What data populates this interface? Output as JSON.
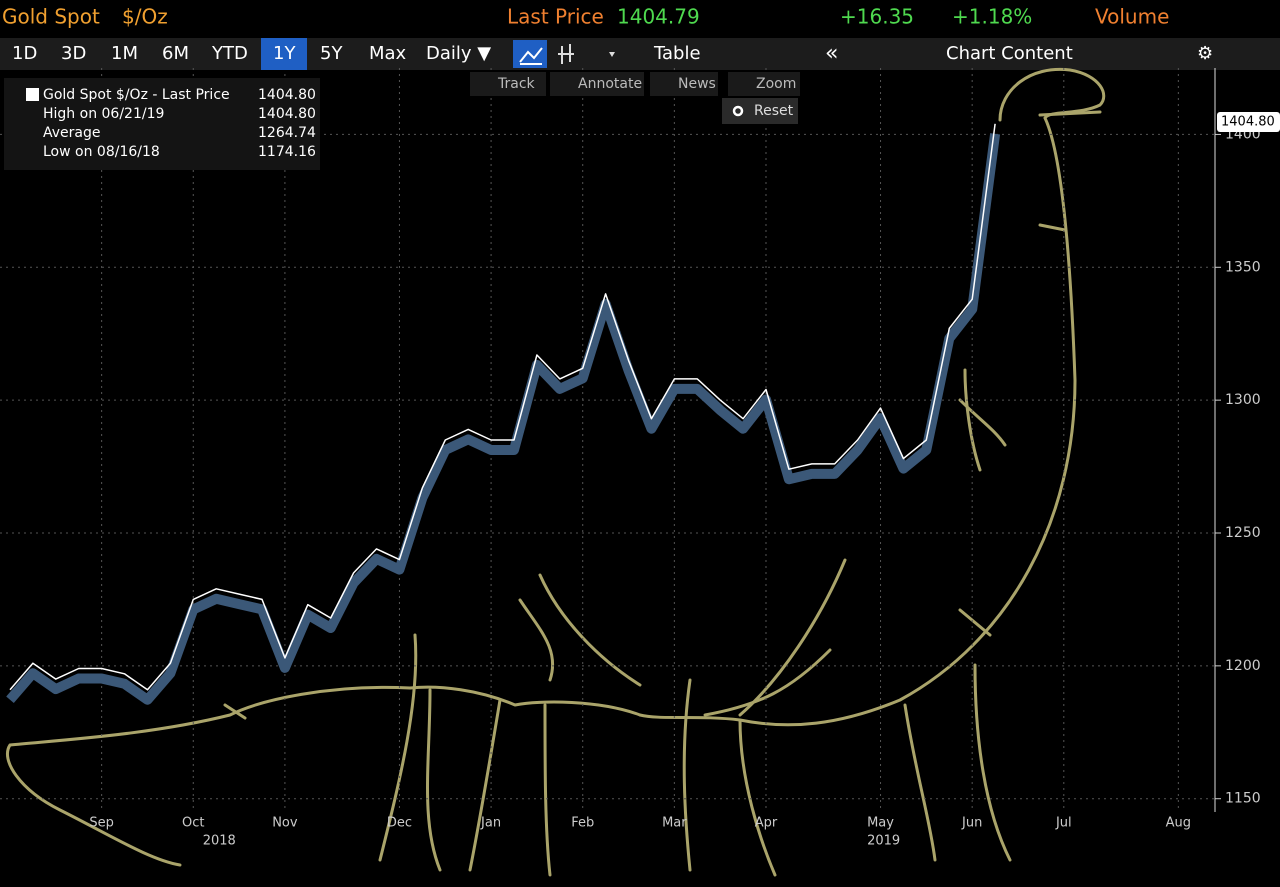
{
  "header": {
    "title": "Gold Spot",
    "unit": "$/Oz",
    "last_price_label": "Last Price",
    "last_price": "1404.79",
    "change": "+16.35",
    "change_pct": "+1.18%",
    "volume_label": "Volume"
  },
  "toolbar": {
    "ranges": [
      "1D",
      "3D",
      "1M",
      "6M",
      "YTD",
      "1Y",
      "5Y",
      "Max"
    ],
    "active_range": "1Y",
    "frequency": "Daily ▼",
    "table": "Table",
    "collapse": "«",
    "chart_content": "Chart Content",
    "settings": "⚙"
  },
  "subtoolbar": [
    "Track",
    "Annotate",
    "News",
    "Zoom"
  ],
  "reset": "Reset",
  "legend": {
    "items": [
      {
        "label": "Gold Spot $/Oz - Last Price",
        "value": "1404.80"
      },
      {
        "label": "High on 06/21/19",
        "value": "1404.80"
      },
      {
        "label": "Average",
        "value": "1264.74"
      },
      {
        "label": "Low on 08/16/18",
        "value": "1174.16"
      }
    ]
  },
  "chart_data": {
    "type": "line",
    "categories": [
      null,
      null,
      null,
      null,
      "Sep",
      null,
      null,
      null,
      "Oct",
      null,
      null,
      null,
      "Nov",
      null,
      null,
      null,
      null,
      "Dec",
      null,
      null,
      null,
      "Jan",
      null,
      null,
      null,
      "Feb",
      null,
      null,
      null,
      "Mar",
      null,
      null,
      null,
      "Apr",
      null,
      null,
      null,
      null,
      "May",
      null,
      null,
      null,
      "Jun",
      null,
      null,
      null,
      "Jul",
      null,
      null,
      null,
      null,
      "Aug",
      null
    ],
    "year_labels": [
      null,
      null,
      null,
      null,
      null,
      null,
      null,
      null,
      "2018",
      null,
      null,
      null,
      null,
      null,
      null,
      null,
      null,
      null,
      null,
      null,
      null,
      null,
      null,
      null,
      null,
      null,
      null,
      null,
      null,
      null,
      null,
      null,
      null,
      null,
      null,
      null,
      null,
      "2019",
      null,
      null,
      null,
      null,
      null,
      null,
      null,
      null,
      null,
      null,
      null,
      null,
      null,
      null,
      null
    ],
    "series": [
      {
        "name": "Gold Spot $/Oz - Last Price",
        "color": "#ffffff",
        "values": [
          1191,
          1201,
          1195,
          1199,
          1199,
          1197,
          1191,
          1201,
          1225,
          1229,
          1227,
          1225,
          1203,
          1223,
          1218,
          1235,
          1244,
          1240,
          1267,
          1285,
          1289,
          1285,
          1285,
          1317,
          1308,
          1312,
          1340,
          1315,
          1293,
          1308,
          1308,
          1300,
          1293,
          1304,
          1274,
          1276,
          1276,
          1285,
          1297,
          1278,
          1285,
          1327,
          1338,
          1404,
          null,
          null,
          null,
          null,
          null,
          null,
          null,
          null,
          null
        ]
      }
    ],
    "ylim": [
      1145,
      1425
    ],
    "yticks": [
      1150,
      1200,
      1250,
      1300,
      1350,
      {
        "value": 1400,
        "label": "1400"
      }
    ],
    "grid": true
  }
}
